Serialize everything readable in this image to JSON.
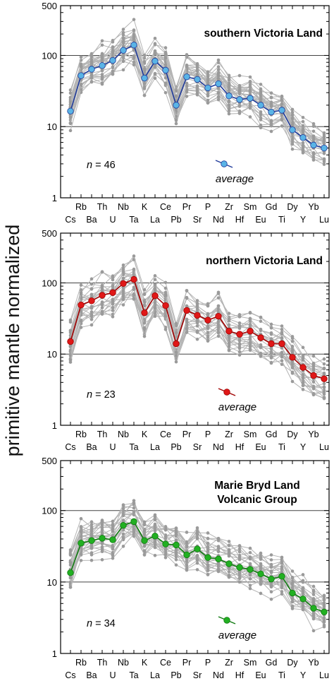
{
  "figure": {
    "ylabel": "primitive mantle normalized",
    "average_label": "average",
    "count_prefix": "n"
  },
  "colors": {
    "gray_lines": "#b4b4b4",
    "gray_points": "#9a9a9a",
    "svl_average": "#5ab4e6",
    "svl_line": "#1f3a9a",
    "nvl_average": "#e01818",
    "nvl_line": "#a00000",
    "mbl_average": "#22b022",
    "mbl_line": "#107a10"
  },
  "chart_data": [
    {
      "type": "line",
      "title": "southern Victoria Land",
      "ylabel": "primitive mantle normalized",
      "yscale": "log",
      "ylim": [
        1,
        500
      ],
      "yticks": [
        1,
        10,
        100,
        500
      ],
      "categories": [
        "Cs",
        "Rb",
        "Ba",
        "Th",
        "U",
        "Nb",
        "Ta",
        "K",
        "La",
        "Ce",
        "Pb",
        "Pr",
        "Sr",
        "P",
        "Nd",
        "Zr",
        "Hf",
        "Sm",
        "Eu",
        "Gd",
        "Ti",
        "Dy",
        "Y",
        "Yb",
        "Lu"
      ],
      "n": 46,
      "average": [
        16.5,
        52,
        64,
        72,
        85,
        118,
        140,
        48,
        83,
        62,
        20,
        50,
        46,
        35,
        40,
        27,
        24,
        25,
        20,
        16,
        17,
        9,
        7,
        5.5,
        5
      ]
    },
    {
      "type": "line",
      "title": "northern Victoria Land",
      "ylabel": "primitive mantle normalized",
      "yscale": "log",
      "ylim": [
        1,
        500
      ],
      "yticks": [
        1,
        10,
        100,
        500
      ],
      "categories": [
        "Cs",
        "Rb",
        "Ba",
        "Th",
        "U",
        "Nb",
        "Ta",
        "K",
        "La",
        "Ce",
        "Pb",
        "Pr",
        "Sr",
        "P",
        "Nd",
        "Zr",
        "Hf",
        "Sm",
        "Eu",
        "Gd",
        "Ti",
        "Dy",
        "Y",
        "Yb",
        "Lu"
      ],
      "n": 23,
      "average": [
        15,
        49,
        56,
        67,
        73,
        98,
        112,
        38,
        66,
        48,
        14,
        41,
        35,
        30,
        34,
        21,
        19,
        21,
        17,
        14,
        14,
        9,
        6.5,
        5,
        4.5
      ]
    },
    {
      "type": "line",
      "title": "Marie Bryd Land\nVolcanic Group",
      "ylabel": "primitive mantle normalized",
      "yscale": "log",
      "ylim": [
        1,
        500
      ],
      "yticks": [
        1,
        10,
        100,
        500
      ],
      "categories": [
        "Cs",
        "Rb",
        "Ba",
        "Th",
        "U",
        "Nb",
        "Ta",
        "K",
        "La",
        "Ce",
        "Pb",
        "Pr",
        "Sr",
        "P",
        "Nd",
        "Zr",
        "Hf",
        "Sm",
        "Eu",
        "Gd",
        "Ti",
        "Dy",
        "Y",
        "Yb",
        "Lu"
      ],
      "n": 34,
      "average": [
        13.5,
        35,
        38,
        41,
        39,
        62,
        70,
        38,
        44,
        34,
        33,
        24,
        29,
        22,
        21,
        18,
        16,
        15,
        13,
        11,
        12,
        7,
        5.8,
        4.3,
        3.8
      ]
    }
  ]
}
